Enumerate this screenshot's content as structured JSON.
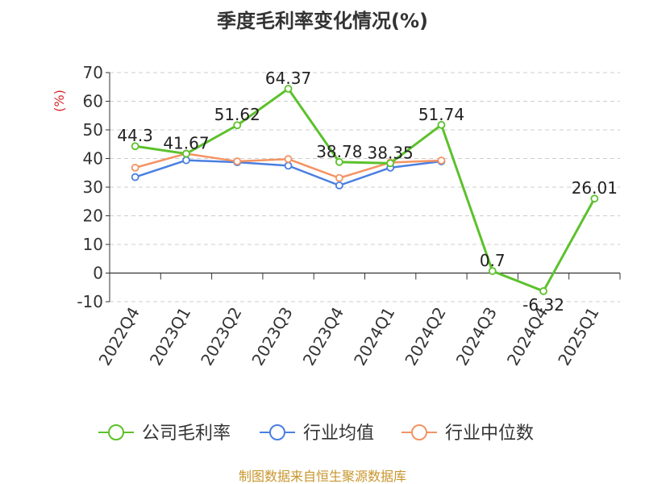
{
  "chart_data": {
    "type": "line",
    "title": "季度毛利率变化情况(%)",
    "ylabel": "(%)",
    "xlabel": "",
    "categories": [
      "2022Q4",
      "2023Q1",
      "2023Q2",
      "2023Q3",
      "2023Q4",
      "2024Q1",
      "2024Q2",
      "2024Q3",
      "2024Q4",
      "2025Q1"
    ],
    "ylim": [
      -10,
      70
    ],
    "yticks": [
      -10,
      0,
      10,
      20,
      30,
      40,
      50,
      60,
      70
    ],
    "grid": true,
    "legend_position": "bottom",
    "series": [
      {
        "name": "公司毛利率",
        "color": "#5cc12c",
        "values": [
          44.3,
          41.67,
          51.62,
          64.37,
          38.78,
          38.35,
          51.74,
          0.7,
          -6.32,
          26.01
        ],
        "labels": [
          "44.3",
          "41.67",
          "51.62",
          "64.37",
          "38.78",
          "38.35",
          "51.74",
          "0.7",
          "-6.32",
          "26.01"
        ]
      },
      {
        "name": "行业均值",
        "color": "#4a7fe0",
        "values": [
          33.5,
          39.4,
          38.7,
          37.5,
          30.6,
          36.8,
          39.0,
          null,
          null,
          null
        ]
      },
      {
        "name": "行业中位数",
        "color": "#f49363",
        "values": [
          36.8,
          41.7,
          39.0,
          39.8,
          33.2,
          38.6,
          39.3,
          null,
          null,
          null
        ]
      }
    ],
    "source": "制图数据来自恒生聚源数据库"
  }
}
